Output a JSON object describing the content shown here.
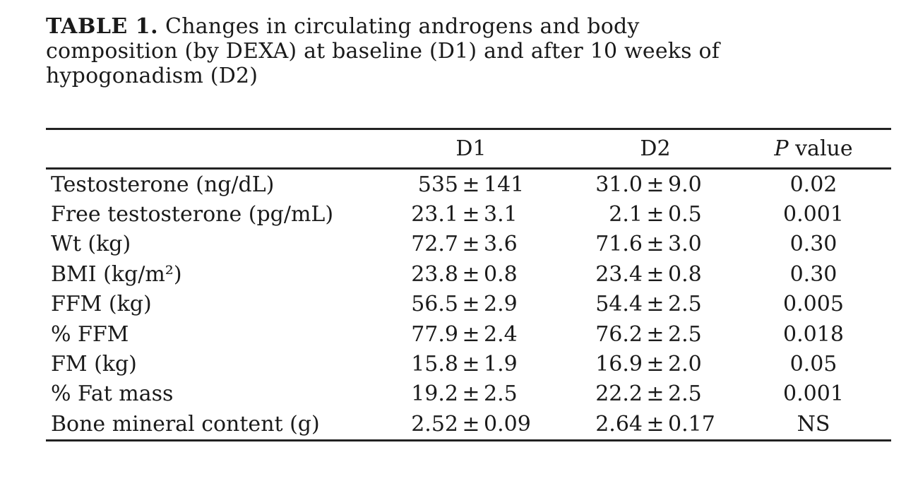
{
  "title": {
    "prefix": "TABLE 1.",
    "line1_rest": "Changes in circulating androgens and body",
    "line2": "composition (by DEXA) at baseline (D1) and after 10 weeks of",
    "line3": "hypogonadism (D2)"
  },
  "table": {
    "pm": "±",
    "columns": {
      "d1": "D1",
      "d2": "D2",
      "p_italic": "P",
      "p_rest": "value"
    },
    "rows": [
      {
        "label": "Testosterone (ng/dL)",
        "d1_mean": "535",
        "d1_sd": "141",
        "d2_mean": "31.0",
        "d2_sd": "9.0",
        "p": "0.02"
      },
      {
        "label": "Free testosterone (pg/mL)",
        "d1_mean": "23.1",
        "d1_sd": "3.1",
        "d2_mean": "2.1",
        "d2_sd": "0.5",
        "p": "0.001"
      },
      {
        "label": "Wt (kg)",
        "d1_mean": "72.7",
        "d1_sd": "3.6",
        "d2_mean": "71.6",
        "d2_sd": "3.0",
        "p": "0.30"
      },
      {
        "label": "BMI (kg/m²)",
        "d1_mean": "23.8",
        "d1_sd": "0.8",
        "d2_mean": "23.4",
        "d2_sd": "0.8",
        "p": "0.30"
      },
      {
        "label": "FFM (kg)",
        "d1_mean": "56.5",
        "d1_sd": "2.9",
        "d2_mean": "54.4",
        "d2_sd": "2.5",
        "p": "0.005"
      },
      {
        "label": "% FFM",
        "d1_mean": "77.9",
        "d1_sd": "2.4",
        "d2_mean": "76.2",
        "d2_sd": "2.5",
        "p": "0.018"
      },
      {
        "label": "FM (kg)",
        "d1_mean": "15.8",
        "d1_sd": "1.9",
        "d2_mean": "16.9",
        "d2_sd": "2.0",
        "p": "0.05"
      },
      {
        "label": "% Fat mass",
        "d1_mean": "19.2",
        "d1_sd": "2.5",
        "d2_mean": "22.2",
        "d2_sd": "2.5",
        "p": "0.001"
      },
      {
        "label": "Bone mineral content (g)",
        "d1_mean": "2.52",
        "d1_sd": "0.09",
        "d2_mean": "2.64",
        "d2_sd": "0.17",
        "p": "NS"
      }
    ]
  }
}
